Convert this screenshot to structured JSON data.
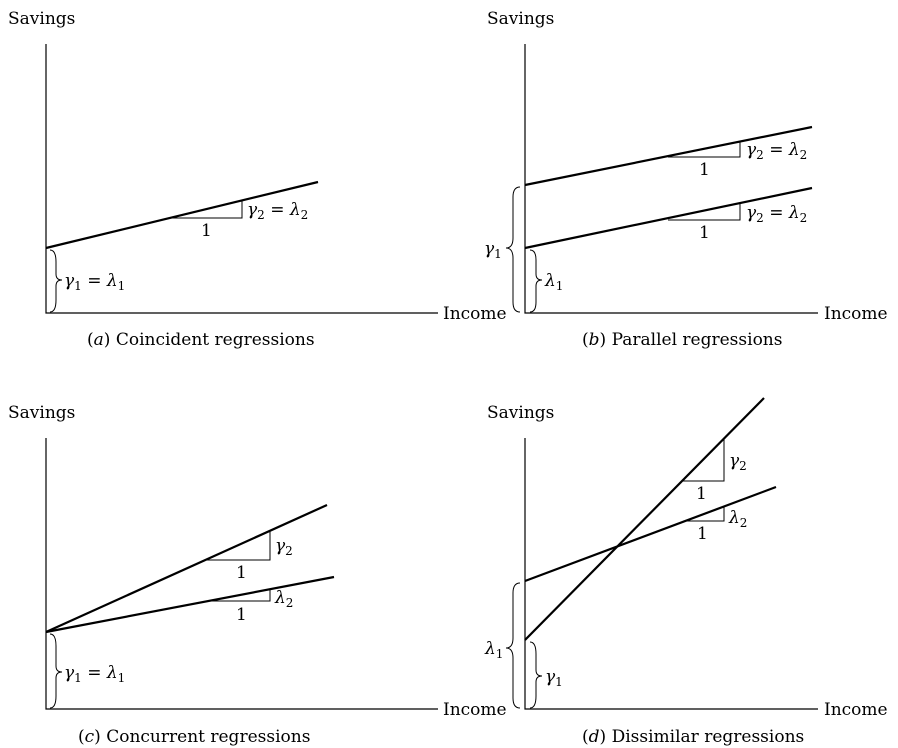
{
  "panels": [
    {
      "id": "a",
      "ylabel": "Savings",
      "xlabel": "Income",
      "caption_letter": "a",
      "caption_text": " Coincident regressions",
      "slope_labels": [
        {
          "base": "γ",
          "sub": "2",
          "eq": " = ",
          "base2": "λ",
          "sub2": "2",
          "run": "1"
        }
      ],
      "brace_labels": [
        {
          "base": "γ",
          "sub": "1",
          "eq": " = ",
          "base2": "λ",
          "sub2": "1"
        }
      ]
    },
    {
      "id": "b",
      "ylabel": "Savings",
      "xlabel": "Income",
      "caption_letter": "b",
      "caption_text": " Parallel regressions",
      "slope_labels": [
        {
          "base": "γ",
          "sub": "2",
          "eq": " = ",
          "base2": "λ",
          "sub2": "2",
          "run": "1"
        },
        {
          "base": "γ",
          "sub": "2",
          "eq": " = ",
          "base2": "λ",
          "sub2": "2",
          "run": "1"
        }
      ],
      "brace_labels": [
        {
          "base": "γ",
          "sub": "1"
        },
        {
          "base": "λ",
          "sub": "1"
        }
      ]
    },
    {
      "id": "c",
      "ylabel": "Savings",
      "xlabel": "Income",
      "caption_letter": "c",
      "caption_text": " Concurrent regressions",
      "slope_labels": [
        {
          "base": "γ",
          "sub": "2",
          "run": "1"
        },
        {
          "base": "λ",
          "sub": "2",
          "run": "1"
        }
      ],
      "brace_labels": [
        {
          "base": "γ",
          "sub": "1",
          "eq": " = ",
          "base2": "λ",
          "sub2": "1"
        }
      ]
    },
    {
      "id": "d",
      "ylabel": "Savings",
      "xlabel": "Income",
      "caption_letter": "d",
      "caption_text": " Dissimilar regressions",
      "slope_labels": [
        {
          "base": "γ",
          "sub": "2",
          "run": "1"
        },
        {
          "base": "λ",
          "sub": "2",
          "run": "1"
        }
      ],
      "brace_labels": [
        {
          "base": "λ",
          "sub": "1"
        },
        {
          "base": "γ",
          "sub": "1"
        }
      ]
    }
  ]
}
